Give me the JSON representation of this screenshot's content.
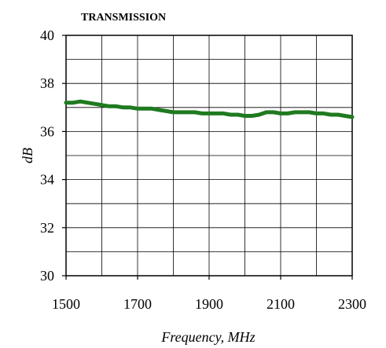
{
  "chart_data": {
    "type": "line",
    "title": "TRANSMISSION",
    "xlabel": "Frequency, MHz",
    "ylabel": "dB",
    "xlim": [
      1500,
      2300
    ],
    "ylim": [
      30,
      40
    ],
    "x_ticks": [
      1500,
      1700,
      1900,
      2100,
      2300
    ],
    "y_ticks": [
      30,
      32,
      34,
      36,
      38,
      40
    ],
    "grid": true,
    "series": [
      {
        "color": "#1f7a1f",
        "x": [
          1500,
          1520,
          1540,
          1560,
          1580,
          1600,
          1620,
          1640,
          1660,
          1680,
          1700,
          1720,
          1740,
          1760,
          1780,
          1800,
          1820,
          1840,
          1860,
          1880,
          1900,
          1920,
          1940,
          1960,
          1980,
          2000,
          2020,
          2040,
          2060,
          2080,
          2100,
          2120,
          2140,
          2160,
          2180,
          2200,
          2220,
          2240,
          2260,
          2280,
          2300
        ],
        "y": [
          37.2,
          37.2,
          37.25,
          37.2,
          37.15,
          37.1,
          37.05,
          37.05,
          37.0,
          37.0,
          36.95,
          36.95,
          36.95,
          36.9,
          36.85,
          36.8,
          36.8,
          36.8,
          36.8,
          36.75,
          36.75,
          36.75,
          36.75,
          36.7,
          36.7,
          36.65,
          36.65,
          36.7,
          36.8,
          36.8,
          36.75,
          36.75,
          36.8,
          36.8,
          36.8,
          36.75,
          36.75,
          36.7,
          36.7,
          36.65,
          36.6
        ]
      }
    ]
  }
}
